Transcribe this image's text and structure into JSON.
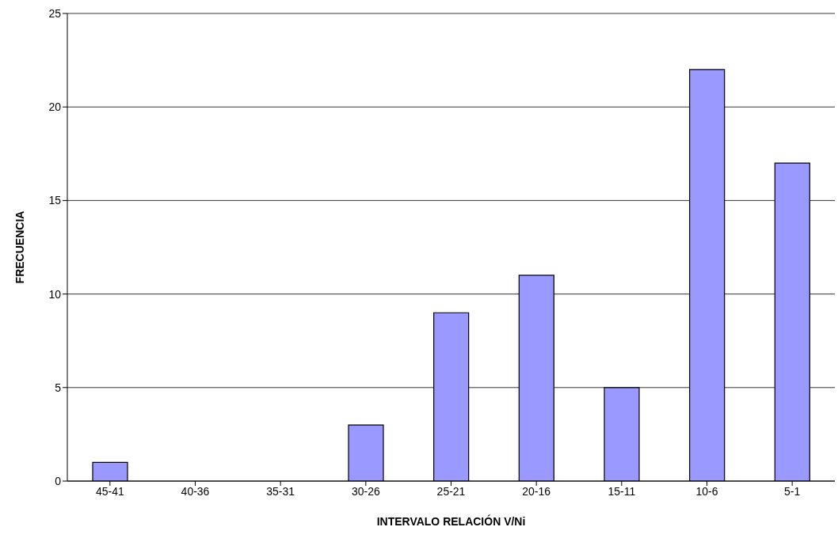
{
  "chart_data": {
    "type": "bar",
    "xlabel": "INTERVALO RELACIÓN V/Ni",
    "ylabel": "FRECUENCIA",
    "categories": [
      "45-41",
      "40-36",
      "35-31",
      "30-26",
      "25-21",
      "20-16",
      "15-11",
      "10-6",
      "5-1"
    ],
    "values": [
      1,
      0,
      0,
      3,
      9,
      11,
      5,
      22,
      17
    ],
    "color": "#9999ff",
    "ylim": [
      0,
      25
    ],
    "yticks": [
      0,
      5,
      10,
      15,
      20,
      25
    ],
    "grid": "y",
    "legend": false
  }
}
